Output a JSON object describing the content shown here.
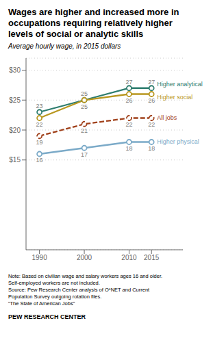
{
  "chart_data": {
    "type": "line",
    "title": "Wages are higher and increased more in\noccupations requiring relatively higher\nlevels of social or analytic skills",
    "subtitle": "Average hourly wage, in 2015 dollars",
    "x": [
      1990,
      2000,
      2010,
      2015
    ],
    "series": [
      {
        "name": "Higher analytical",
        "color": "#2e7d6e",
        "line_style": "solid",
        "marker": "circle",
        "values": [
          23,
          25,
          27,
          27
        ]
      },
      {
        "name": "Higher social",
        "color": "#b8971f",
        "line_style": "solid",
        "marker": "circle",
        "values": [
          22,
          25,
          26,
          26
        ]
      },
      {
        "name": "All jobs",
        "color": "#a0401a",
        "line_style": "dashed",
        "marker": "circle",
        "values": [
          19,
          21,
          22,
          22
        ]
      },
      {
        "name": "Higher physical",
        "color": "#7baac8",
        "line_style": "solid",
        "marker": "circle",
        "values": [
          16,
          17,
          18,
          18
        ]
      }
    ],
    "xlim": [
      1987,
      2022
    ],
    "xticks": [
      1990,
      2000,
      2010,
      2015
    ],
    "ylim": [
      0,
      32
    ],
    "yticks": [
      {
        "value": 15,
        "label": "$15"
      },
      {
        "value": 20,
        "label": "$20"
      },
      {
        "value": 25,
        "label": "$25"
      },
      {
        "value": 30,
        "label": "$30"
      }
    ],
    "grid": true,
    "data_labels": true,
    "annotations": [
      "Note: Based on civilian wage and salary workers ages 16 and older.\nSelf-employed workers are not included.\nSource: Pew Research Center analysis of O*NET and Current\nPopulation Survey outgoing rotation files.\n“The State of American Jobs”",
      "PEW RESEARCH CENTER"
    ]
  }
}
